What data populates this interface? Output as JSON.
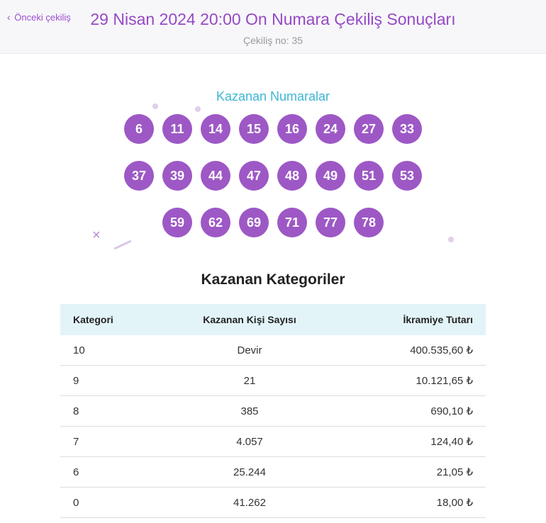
{
  "header": {
    "prev_link": "Önceki çekiliş",
    "title": "29 Nisan 2024 20:00 On Numara Çekiliş Sonuçları",
    "subtitle": "Çekiliş no: 35"
  },
  "winning": {
    "label": "Kazanan Numaralar",
    "ball_color": "#9d58c5",
    "ball_text_color": "#ffffff",
    "numbers": [
      "6",
      "11",
      "14",
      "15",
      "16",
      "24",
      "27",
      "33",
      "37",
      "39",
      "44",
      "47",
      "48",
      "49",
      "51",
      "53",
      "59",
      "62",
      "69",
      "71",
      "77",
      "78"
    ]
  },
  "categories": {
    "title": "Kazanan Kategoriler",
    "header_bg": "#e3f4f8",
    "columns": [
      "Kategori",
      "Kazanan Kişi Sayısı",
      "İkramiye Tutarı"
    ],
    "rows": [
      {
        "cat": "10",
        "count": "Devir",
        "prize": "400.535,60 ₺"
      },
      {
        "cat": "9",
        "count": "21",
        "prize": "10.121,65 ₺"
      },
      {
        "cat": "8",
        "count": "385",
        "prize": "690,10 ₺"
      },
      {
        "cat": "7",
        "count": "4.057",
        "prize": "124,40 ₺"
      },
      {
        "cat": "6",
        "count": "25.244",
        "prize": "21,05 ₺"
      },
      {
        "cat": "0",
        "count": "41.262",
        "prize": "18,00 ₺"
      }
    ]
  }
}
